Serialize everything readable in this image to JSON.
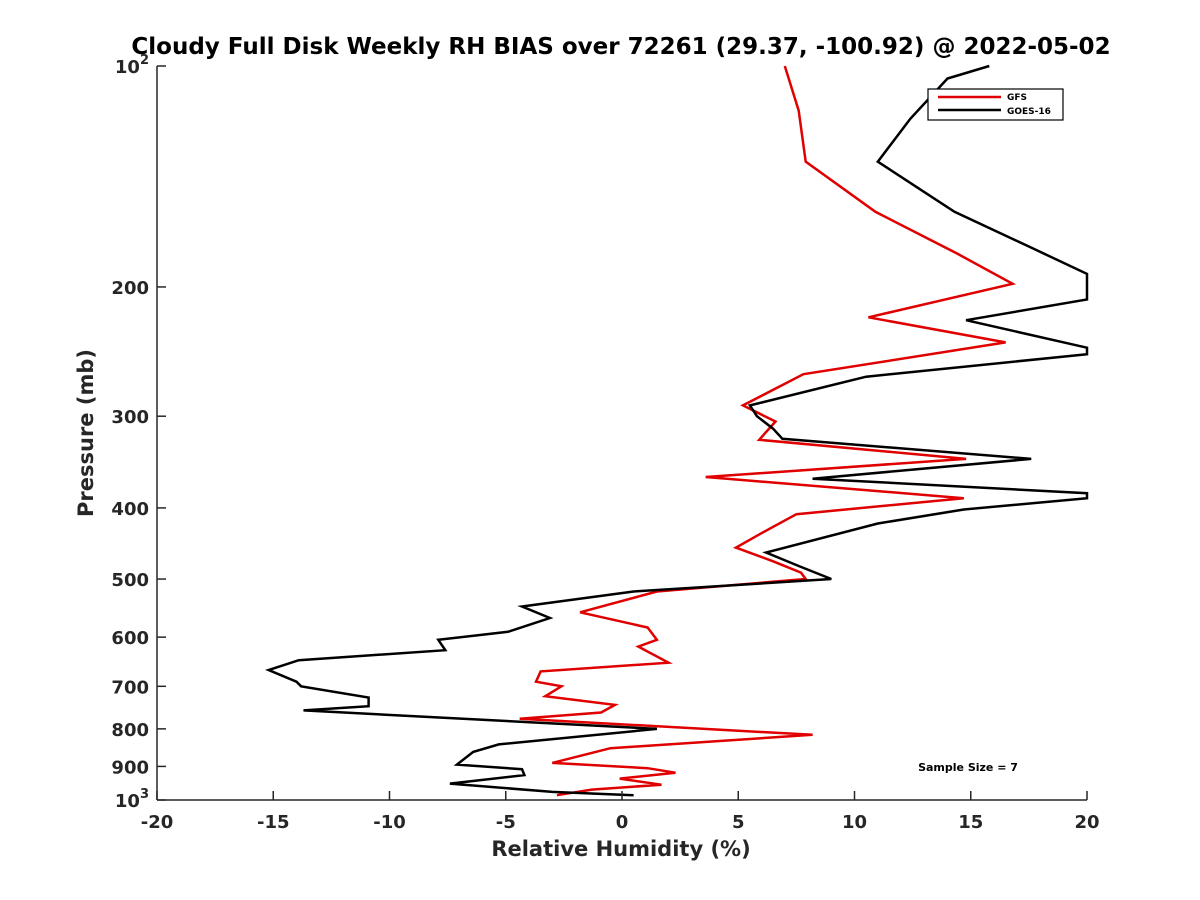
{
  "chart_data": {
    "type": "line",
    "title": "Cloudy Full Disk Weekly RH BIAS over 72261 (29.37, -100.92) @ 2022-05-02",
    "xlabel": "Relative Humidity (%)",
    "ylabel": "Pressure (mb)",
    "xlim": [
      -20,
      20
    ],
    "ylim": [
      100,
      1000
    ],
    "y_scale": "log",
    "y_reversed": true,
    "x_ticks": [
      -20,
      -15,
      -10,
      -5,
      0,
      5,
      10,
      15,
      20
    ],
    "x_tick_labels": [
      "-20",
      "-15",
      "-10",
      "-5",
      "0",
      "5",
      "10",
      "15",
      "20"
    ],
    "y_ticks": [
      100,
      200,
      300,
      400,
      500,
      600,
      700,
      800,
      900,
      1000
    ],
    "y_tick_labels": [
      {
        "base": "10",
        "exp": "2"
      },
      {
        "base": "200",
        "exp": ""
      },
      {
        "base": "300",
        "exp": ""
      },
      {
        "base": "400",
        "exp": ""
      },
      {
        "base": "500",
        "exp": ""
      },
      {
        "base": "600",
        "exp": ""
      },
      {
        "base": "700",
        "exp": ""
      },
      {
        "base": "800",
        "exp": ""
      },
      {
        "base": "900",
        "exp": ""
      },
      {
        "base": "10",
        "exp": "3"
      }
    ],
    "legend_position": "top-right",
    "grid": false,
    "annotation": "Sample Size = 7",
    "series": [
      {
        "name": "GFS",
        "color": "#e00000",
        "points": [
          [
            7.0,
            100
          ],
          [
            7.6,
            115
          ],
          [
            7.9,
            135
          ],
          [
            10.9,
            158
          ],
          [
            14.4,
            180
          ],
          [
            16.8,
            198
          ],
          [
            10.6,
            220
          ],
          [
            16.5,
            238
          ],
          [
            7.8,
            263
          ],
          [
            5.2,
            290
          ],
          [
            6.6,
            305
          ],
          [
            5.9,
            323
          ],
          [
            14.8,
            343
          ],
          [
            3.6,
            363
          ],
          [
            14.7,
            388
          ],
          [
            7.5,
            408
          ],
          [
            6.0,
            433
          ],
          [
            4.9,
            453
          ],
          [
            6.5,
            473
          ],
          [
            7.7,
            490
          ],
          [
            7.9,
            500
          ],
          [
            1.5,
            520
          ],
          [
            -1.8,
            555
          ],
          [
            1.1,
            582
          ],
          [
            1.5,
            605
          ],
          [
            0.7,
            618
          ],
          [
            2.0,
            650
          ],
          [
            -3.5,
            668
          ],
          [
            -3.7,
            690
          ],
          [
            -2.6,
            700
          ],
          [
            -3.3,
            722
          ],
          [
            -0.3,
            742
          ],
          [
            -0.9,
            760
          ],
          [
            -4.4,
            775
          ],
          [
            8.2,
            815
          ],
          [
            -0.5,
            850
          ],
          [
            -3.0,
            890
          ],
          [
            1.1,
            905
          ],
          [
            2.3,
            918
          ],
          [
            -0.1,
            935
          ],
          [
            1.7,
            953
          ],
          [
            -1.3,
            968
          ],
          [
            -2.8,
            985
          ]
        ]
      },
      {
        "name": "GOES-16",
        "color": "#000000",
        "points": [
          [
            15.8,
            100
          ],
          [
            14.0,
            104
          ],
          [
            12.4,
            118
          ],
          [
            11.0,
            135
          ],
          [
            14.3,
            158
          ],
          [
            17.8,
            178
          ],
          [
            20,
            192
          ],
          [
            20,
            208
          ],
          [
            14.8,
            222
          ],
          [
            20,
            242
          ],
          [
            20,
            247
          ],
          [
            10.5,
            265
          ],
          [
            5.5,
            290
          ],
          [
            5.8,
            300
          ],
          [
            6.5,
            312
          ],
          [
            6.9,
            322
          ],
          [
            17.6,
            343
          ],
          [
            8.2,
            365
          ],
          [
            20,
            382
          ],
          [
            20,
            388
          ],
          [
            14.7,
            402
          ],
          [
            11.0,
            420
          ],
          [
            6.2,
            460
          ],
          [
            7.6,
            480
          ],
          [
            9.0,
            500
          ],
          [
            0.5,
            520
          ],
          [
            -4.3,
            545
          ],
          [
            -3.1,
            565
          ],
          [
            -4.9,
            590
          ],
          [
            -7.9,
            605
          ],
          [
            -7.6,
            625
          ],
          [
            -13.9,
            645
          ],
          [
            -15.2,
            665
          ],
          [
            -14.0,
            690
          ],
          [
            -13.8,
            700
          ],
          [
            -10.9,
            725
          ],
          [
            -10.9,
            745
          ],
          [
            -13.7,
            755
          ],
          [
            1.5,
            800
          ],
          [
            -5.3,
            840
          ],
          [
            -6.4,
            860
          ],
          [
            -7.1,
            895
          ],
          [
            -4.3,
            908
          ],
          [
            -4.2,
            925
          ],
          [
            -7.4,
            950
          ],
          [
            -3.0,
            975
          ],
          [
            0.5,
            985
          ]
        ]
      }
    ]
  }
}
